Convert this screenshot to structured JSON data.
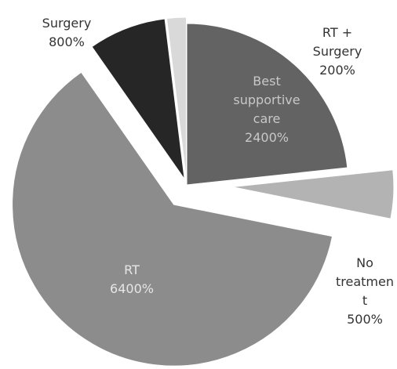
{
  "chart_data": {
    "type": "pie",
    "categories": [
      "Best supportive care",
      "No treatment",
      "RT",
      "Surgery",
      "RT + Surgery"
    ],
    "values": [
      2400,
      500,
      6400,
      800,
      200
    ],
    "value_labels": [
      "2400%",
      "500%",
      "6400%",
      "800%",
      "200%"
    ],
    "colors": [
      "#636363",
      "#b3b3b3",
      "#8c8c8c",
      "#262626",
      "#d9d9d9"
    ]
  }
}
